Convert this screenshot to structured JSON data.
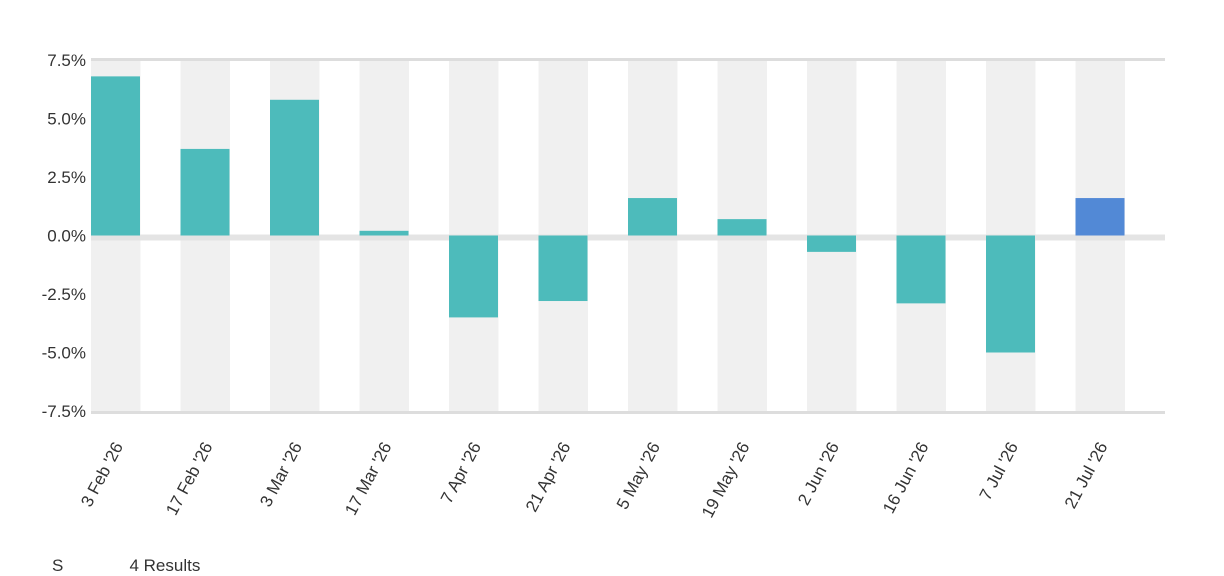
{
  "chart_data": {
    "type": "bar",
    "categories": [
      "3 Feb '26",
      "17 Feb '26",
      "3 Mar '26",
      "17 Mar '26",
      "7 Apr '26",
      "21 Apr '26",
      "5 May '26",
      "19 May '26",
      "2 Jun '26",
      "16 Jun '26",
      "7 Jul '26",
      "21 Jul '26"
    ],
    "values": [
      6.8,
      3.7,
      5.8,
      0.2,
      -3.5,
      -2.8,
      1.6,
      0.7,
      -0.7,
      -2.9,
      -5.0,
      1.6
    ],
    "highlight_index": 11,
    "y_ticks": [
      "7.5%",
      "5.0%",
      "2.5%",
      "0.0%",
      "-2.5%",
      "-5.0%",
      "-7.5%"
    ],
    "ylim": [
      -7.5,
      7.5
    ],
    "title": "",
    "xlabel": "",
    "ylabel": "",
    "grid": "alternating column bands",
    "legend": "none"
  },
  "colors": {
    "bar": "#4dbbbb",
    "highlight_bar": "#5289d6",
    "band": "#f0f0f0",
    "axis_line": "#dddddd",
    "zero_band": "#e4e4e4"
  },
  "footer_partial_text": "S              4 Results"
}
